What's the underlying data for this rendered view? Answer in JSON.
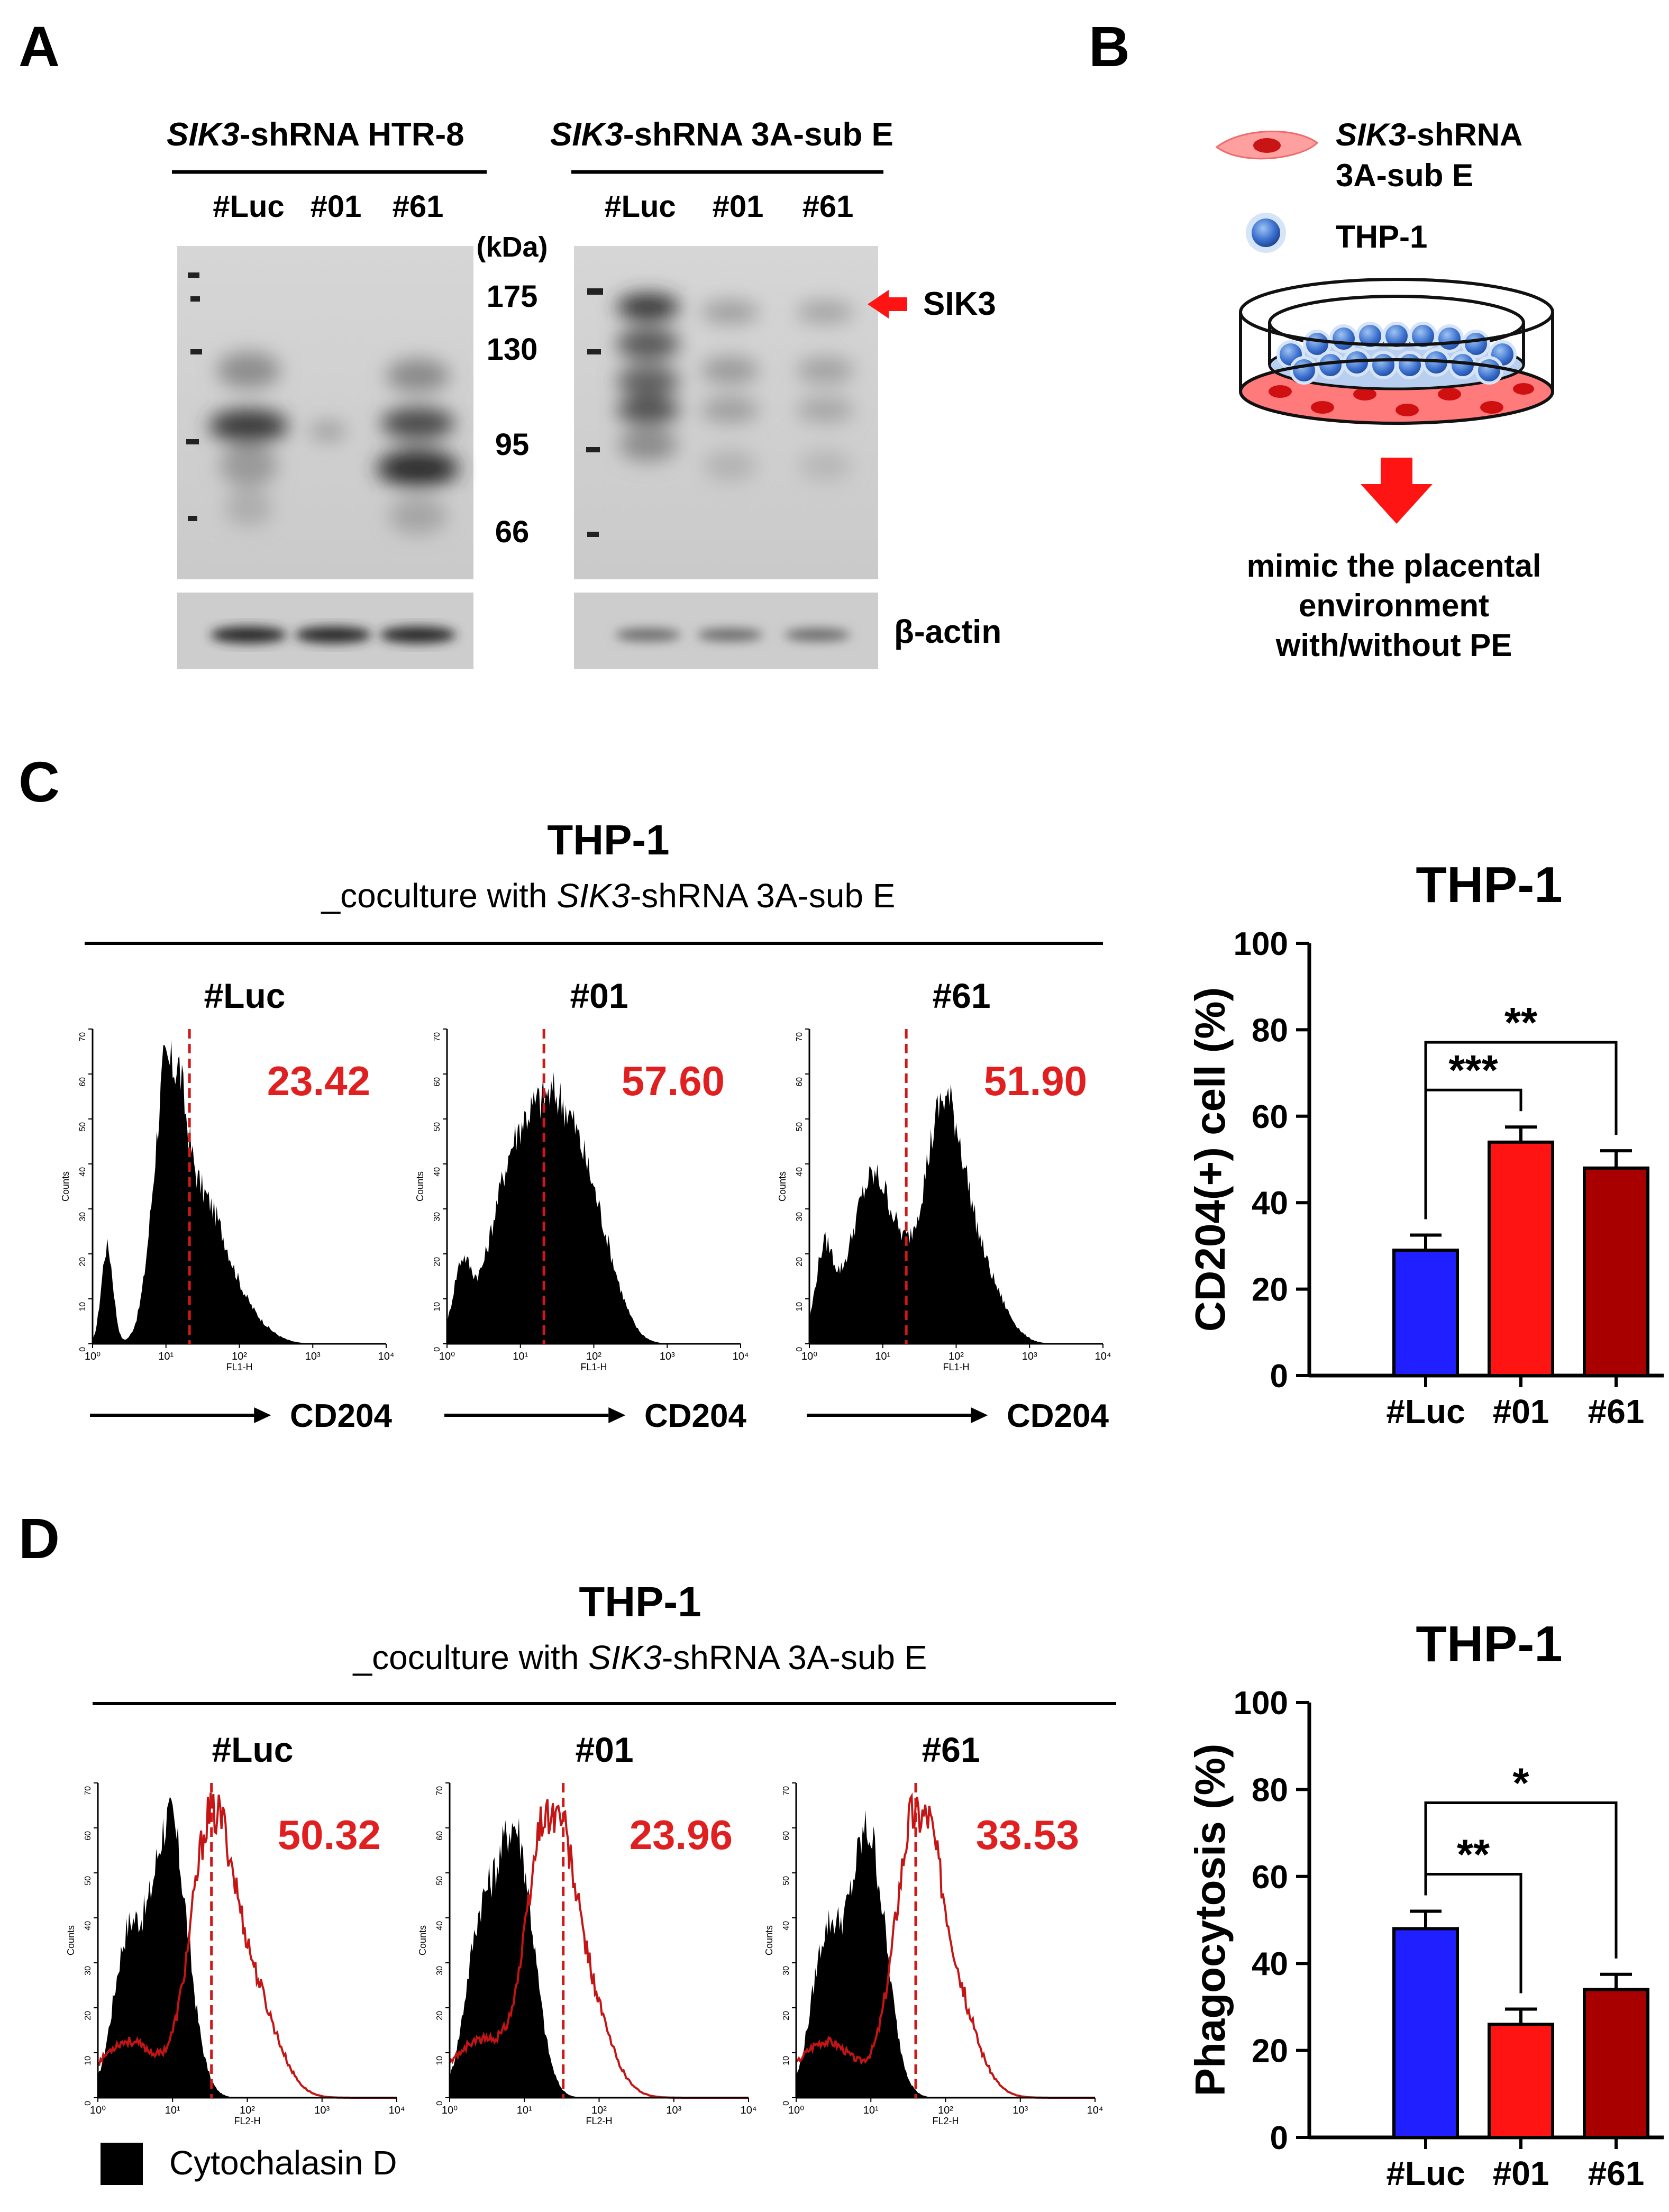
{
  "panel_labels": {
    "a": "A",
    "b": "B",
    "c": "C",
    "d": "D"
  },
  "western_blot": {
    "group1": {
      "prefix": "SIK3",
      "suffix": "-shRNA HTR-8"
    },
    "group2": {
      "prefix": "SIK3",
      "suffix": "-shRNA 3A-sub E"
    },
    "lanes": [
      "#Luc",
      "#01",
      "#61"
    ],
    "kda_unit": "(kDa)",
    "markers": [
      "175",
      "130",
      "95",
      "66"
    ],
    "target_label": "SIK3",
    "loading_control": "β-actin"
  },
  "schematic": {
    "legend_cell_prefix": "SIK3",
    "legend_cell_suffix": "-shRNA",
    "legend_cell_line2": "3A-sub E",
    "legend_thp1": "THP-1",
    "caption_lines": [
      "mimic the placental",
      "environment",
      "with/without PE"
    ]
  },
  "flow_c": {
    "title": "THP-1",
    "subtitle_prefix": "_coculture with ",
    "subtitle_gene": "SIK3",
    "subtitle_suffix": "-shRNA 3A-sub E",
    "panels": [
      {
        "name": "#Luc",
        "value": "23.42"
      },
      {
        "name": "#01",
        "value": "57.60"
      },
      {
        "name": "#61",
        "value": "51.90"
      }
    ],
    "axis_marker": "CD204",
    "x_axis_title": "FL1-H",
    "y_axis_title": "Counts",
    "x_ticks": [
      "10⁰",
      "10¹",
      "10²",
      "10³",
      "10⁴"
    ],
    "y_ticks": [
      "0",
      "10",
      "20",
      "30",
      "40",
      "50",
      "60",
      "70"
    ]
  },
  "flow_d": {
    "title": "THP-1",
    "subtitle_prefix": "_coculture with ",
    "subtitle_gene": "SIK3",
    "subtitle_suffix": "-shRNA 3A-sub E",
    "panels": [
      {
        "name": "#Luc",
        "value": "50.32"
      },
      {
        "name": "#01",
        "value": "23.96"
      },
      {
        "name": "#61",
        "value": "33.53"
      }
    ],
    "legend": "Cytochalasin D",
    "x_axis_title": "FL2-H",
    "y_axis_title": "Counts",
    "x_ticks": [
      "10⁰",
      "10¹",
      "10²",
      "10³",
      "10⁴"
    ],
    "y_ticks": [
      "0",
      "10",
      "20",
      "30",
      "40",
      "50",
      "60",
      "70"
    ]
  },
  "colors": {
    "blue": "#1f1fff",
    "red": "#ff1414",
    "darkred": "#a80000",
    "annot": "#e02020"
  },
  "chart_data": [
    {
      "type": "bar",
      "title": "THP-1",
      "ylabel": "CD204(+) cell (%)",
      "xlabel": "",
      "categories": [
        "#Luc",
        "#01",
        "#61"
      ],
      "values": [
        29,
        54,
        48
      ],
      "errors": [
        3.5,
        3.5,
        4
      ],
      "ylim": [
        0,
        100
      ],
      "yticks": [
        0,
        20,
        40,
        60,
        80,
        100
      ],
      "significance": [
        {
          "pair": [
            "#Luc",
            "#01"
          ],
          "label": "***"
        },
        {
          "pair": [
            "#Luc",
            "#61"
          ],
          "label": "**"
        }
      ]
    },
    {
      "type": "bar",
      "title": "THP-1",
      "ylabel": "Phagocytosis (%)",
      "xlabel": "",
      "categories": [
        "#Luc",
        "#01",
        "#61"
      ],
      "values": [
        48,
        26,
        34
      ],
      "errors": [
        4,
        3.5,
        3.5
      ],
      "ylim": [
        0,
        100
      ],
      "yticks": [
        0,
        20,
        40,
        60,
        80,
        100
      ],
      "significance": [
        {
          "pair": [
            "#Luc",
            "#01"
          ],
          "label": "**"
        },
        {
          "pair": [
            "#Luc",
            "#61"
          ],
          "label": "*"
        }
      ]
    }
  ]
}
